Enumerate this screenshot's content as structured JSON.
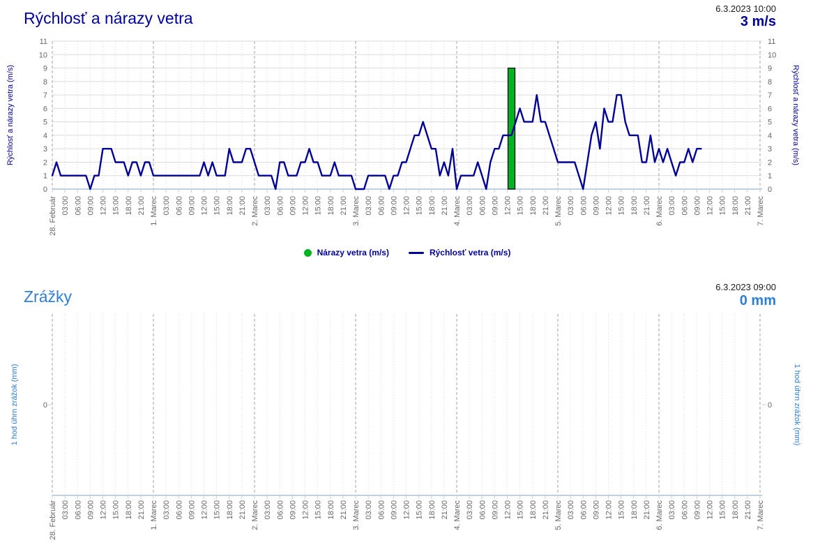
{
  "wind": {
    "title": "Rýchlosť a nárazy vetra",
    "timestamp": "6.3.2023 10:00",
    "current_value": "3 m/s",
    "y_axis_title": "Rýchlosť a nárazy vetra (m/s)",
    "y_ticks": [
      0,
      1,
      2,
      3,
      4,
      5,
      6,
      7,
      8,
      9,
      10,
      11
    ],
    "legend": [
      {
        "label": "Nárazy vetra (m/s)",
        "marker": "circle"
      },
      {
        "label": "Rýchlosť vetra (m/s)",
        "marker": "line"
      }
    ]
  },
  "rain": {
    "title": "Zrážky",
    "timestamp": "6.3.2023 09:00",
    "current_value": "0 mm",
    "y_axis_title": "1 hod úhrn zrážok (mm)",
    "y_ticks": [
      "0"
    ]
  },
  "x_axis": {
    "day_labels": [
      "28. Február",
      "1. Marec",
      "2. Marec",
      "3. Marec",
      "4. Marec",
      "5. Marec",
      "6. Marec",
      "7. Marec"
    ],
    "hour_labels": [
      "03:00",
      "06:00",
      "09:00",
      "12:00",
      "15:00",
      "18:00",
      "21:00"
    ]
  },
  "colors": {
    "navy": "#000099",
    "gust_green": "#00b321",
    "blue": "#2f7ed8",
    "tick_text": "#666666",
    "h_grid": "#dbdbdb",
    "minor_grid": "#d8d8d8",
    "day_grid": "#a0a0a6",
    "axis_line": "#c0d0e0",
    "bar_stroke": "#000000"
  },
  "chart_data": [
    {
      "type": "line",
      "title": "Rýchlosť a nárazy vetra",
      "xlabel": "",
      "ylabel": "Rýchlosť a nárazy vetra (m/s)",
      "x_start": "28.2. 00:00",
      "x_end": "7.3. 00:00",
      "x_interval_hours": 1,
      "ylim": [
        0,
        11
      ],
      "grid": true,
      "legend_position": "bottom",
      "series": [
        {
          "name": "Rýchlosť vetra (m/s)",
          "type": "line",
          "values": [
            1,
            2,
            1,
            1,
            1,
            1,
            1,
            1,
            1,
            0,
            1,
            1,
            3,
            3,
            3,
            2,
            2,
            2,
            1,
            2,
            2,
            1,
            2,
            2,
            1,
            1,
            1,
            1,
            1,
            1,
            1,
            1,
            1,
            1,
            1,
            1,
            2,
            1,
            2,
            1,
            1,
            1,
            3,
            2,
            2,
            2,
            3,
            3,
            2,
            1,
            1,
            1,
            1,
            0,
            2,
            2,
            1,
            1,
            1,
            2,
            2,
            3,
            2,
            2,
            1,
            1,
            1,
            2,
            1,
            1,
            1,
            1,
            0,
            0,
            0,
            1,
            1,
            1,
            1,
            1,
            0,
            1,
            1,
            2,
            2,
            3,
            4,
            4,
            5,
            4,
            3,
            3,
            1,
            2,
            1,
            3,
            0,
            1,
            1,
            1,
            1,
            2,
            1,
            0,
            2,
            3,
            3,
            4,
            4,
            4,
            5,
            6,
            5,
            5,
            5,
            7,
            5,
            5,
            4,
            3,
            2,
            2,
            2,
            2,
            2,
            1,
            0,
            2,
            4,
            5,
            3,
            6,
            5,
            5,
            7,
            7,
            5,
            4,
            4,
            4,
            2,
            2,
            4,
            2,
            3,
            2,
            3,
            2,
            1,
            2,
            2,
            3,
            2,
            3,
            3
          ]
        },
        {
          "name": "Nárazy vetra (m/s)",
          "type": "bar",
          "points": [
            {
              "hour_offset": 109,
              "time": "4.3. 13:00",
              "value": 9
            }
          ]
        }
      ]
    },
    {
      "type": "bar",
      "title": "Zrážky",
      "ylabel": "1 hod úhrn zrážok (mm)",
      "x_start": "28.2. 00:00",
      "x_end": "7.3. 00:00",
      "y_ticks": [
        "0"
      ],
      "series": [
        {
          "name": "1 hod úhrn zrážok (mm)",
          "values": []
        }
      ]
    }
  ]
}
